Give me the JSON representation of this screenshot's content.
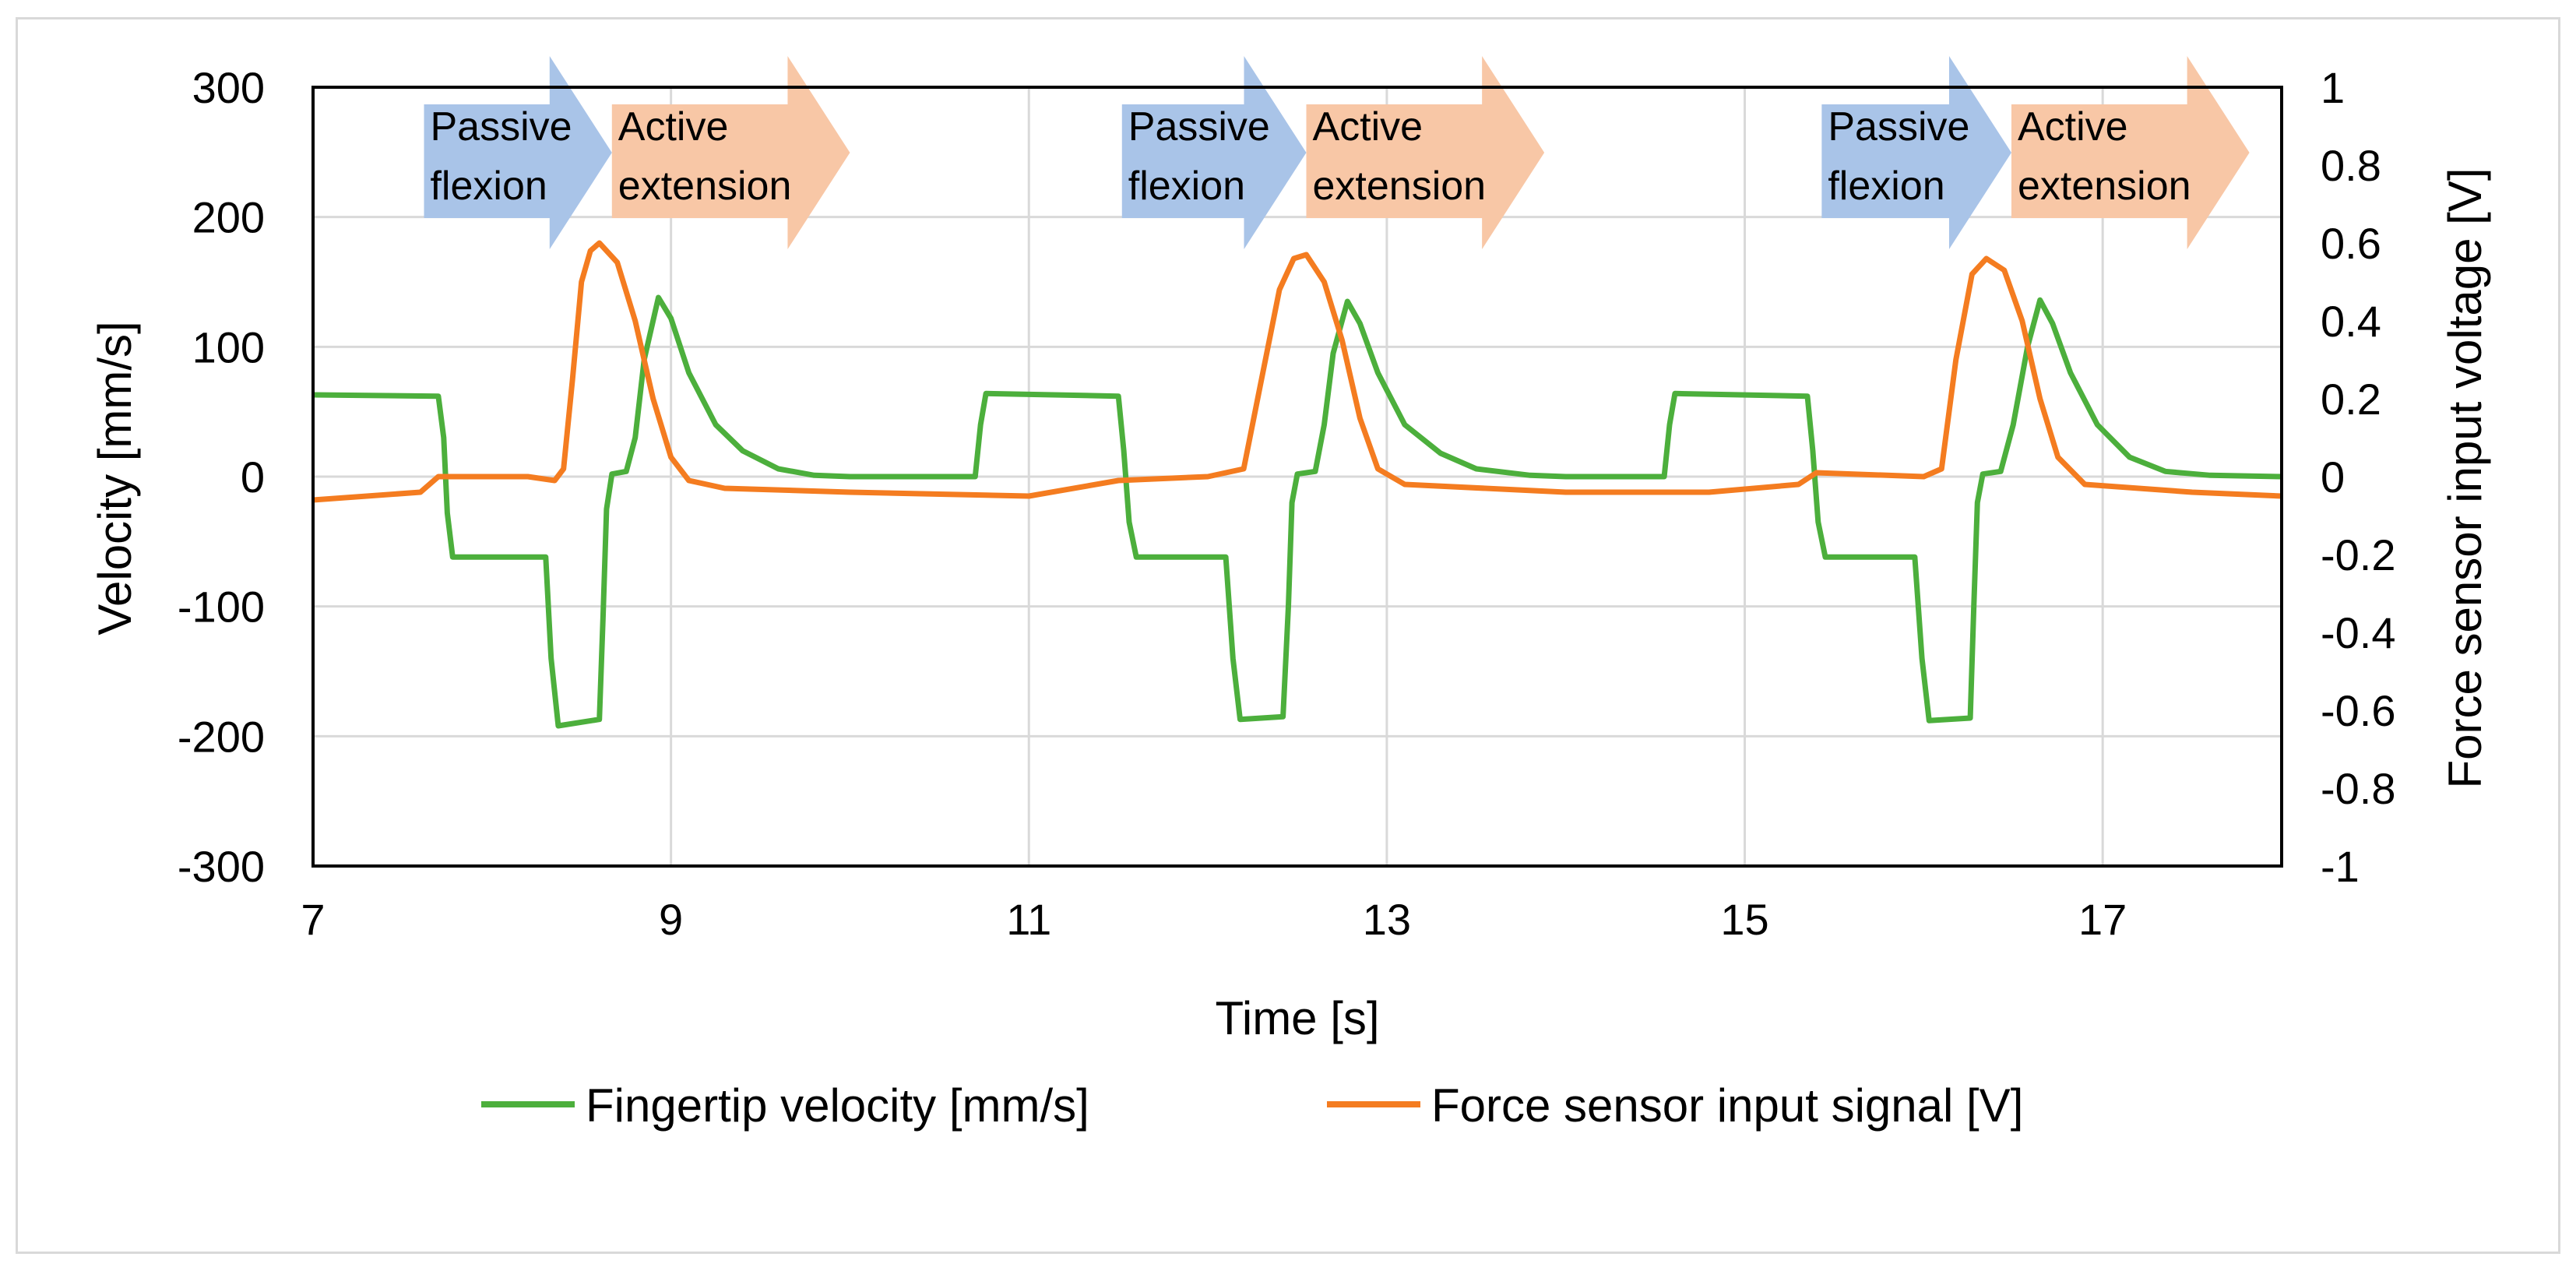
{
  "chart_data": {
    "type": "line",
    "title": "",
    "xlabel": "Time [s]",
    "ylabel": "Velocity [mm/s]",
    "y2label": "Force sensor input voltage [V]",
    "xlim": [
      7,
      18
    ],
    "ylim": [
      -300,
      300
    ],
    "y2lim": [
      -1,
      1
    ],
    "x_ticks": [
      7,
      9,
      11,
      13,
      15,
      17
    ],
    "y_ticks": [
      -300,
      -200,
      -100,
      0,
      100,
      200,
      300
    ],
    "y2_ticks": [
      -1,
      -0.8,
      -0.6,
      -0.4,
      -0.2,
      0,
      0.2,
      0.4,
      0.6,
      0.8,
      1
    ],
    "grid": true,
    "legend_position": "bottom",
    "series": [
      {
        "name": "Fingertip velocity [mm/s]",
        "axis": "left",
        "color": "#4caf3c",
        "points": [
          [
            7.0,
            63
          ],
          [
            7.7,
            62
          ],
          [
            7.73,
            30
          ],
          [
            7.75,
            -28
          ],
          [
            7.78,
            -62
          ],
          [
            8.3,
            -62
          ],
          [
            8.33,
            -140
          ],
          [
            8.37,
            -192
          ],
          [
            8.6,
            -187
          ],
          [
            8.62,
            -110
          ],
          [
            8.64,
            -25
          ],
          [
            8.67,
            2
          ],
          [
            8.75,
            4
          ],
          [
            8.8,
            30
          ],
          [
            8.85,
            90
          ],
          [
            8.93,
            138
          ],
          [
            9.0,
            122
          ],
          [
            9.1,
            80
          ],
          [
            9.25,
            40
          ],
          [
            9.4,
            20
          ],
          [
            9.6,
            6
          ],
          [
            9.8,
            1
          ],
          [
            10.0,
            0
          ],
          [
            10.5,
            0
          ],
          [
            10.7,
            0
          ],
          [
            10.73,
            40
          ],
          [
            10.76,
            64
          ],
          [
            11.5,
            62
          ],
          [
            11.53,
            20
          ],
          [
            11.56,
            -35
          ],
          [
            11.6,
            -62
          ],
          [
            12.1,
            -62
          ],
          [
            12.14,
            -140
          ],
          [
            12.18,
            -187
          ],
          [
            12.42,
            -185
          ],
          [
            12.45,
            -100
          ],
          [
            12.47,
            -20
          ],
          [
            12.5,
            2
          ],
          [
            12.6,
            4
          ],
          [
            12.65,
            40
          ],
          [
            12.7,
            95
          ],
          [
            12.78,
            135
          ],
          [
            12.85,
            118
          ],
          [
            12.95,
            80
          ],
          [
            13.1,
            40
          ],
          [
            13.3,
            18
          ],
          [
            13.5,
            6
          ],
          [
            13.8,
            1
          ],
          [
            14.0,
            0
          ],
          [
            14.5,
            0
          ],
          [
            14.55,
            0
          ],
          [
            14.58,
            40
          ],
          [
            14.61,
            64
          ],
          [
            15.35,
            62
          ],
          [
            15.38,
            20
          ],
          [
            15.41,
            -35
          ],
          [
            15.45,
            -62
          ],
          [
            15.95,
            -62
          ],
          [
            15.99,
            -140
          ],
          [
            16.03,
            -188
          ],
          [
            16.26,
            -186
          ],
          [
            16.28,
            -100
          ],
          [
            16.3,
            -20
          ],
          [
            16.33,
            2
          ],
          [
            16.43,
            4
          ],
          [
            16.5,
            40
          ],
          [
            16.58,
            100
          ],
          [
            16.65,
            136
          ],
          [
            16.72,
            118
          ],
          [
            16.82,
            80
          ],
          [
            16.97,
            40
          ],
          [
            17.15,
            15
          ],
          [
            17.35,
            4
          ],
          [
            17.6,
            1
          ],
          [
            18.0,
            0
          ]
        ]
      },
      {
        "name": "Force sensor input signal [V]",
        "axis": "right",
        "color": "#f47c20",
        "points": [
          [
            7.0,
            -0.06
          ],
          [
            7.6,
            -0.04
          ],
          [
            7.7,
            0.0
          ],
          [
            8.2,
            0.0
          ],
          [
            8.35,
            -0.01
          ],
          [
            8.4,
            0.02
          ],
          [
            8.45,
            0.25
          ],
          [
            8.5,
            0.5
          ],
          [
            8.55,
            0.58
          ],
          [
            8.6,
            0.6
          ],
          [
            8.7,
            0.55
          ],
          [
            8.8,
            0.4
          ],
          [
            8.9,
            0.2
          ],
          [
            9.0,
            0.05
          ],
          [
            9.1,
            -0.01
          ],
          [
            9.3,
            -0.03
          ],
          [
            10.0,
            -0.04
          ],
          [
            11.0,
            -0.05
          ],
          [
            11.5,
            -0.01
          ],
          [
            12.0,
            0.0
          ],
          [
            12.2,
            0.02
          ],
          [
            12.3,
            0.25
          ],
          [
            12.4,
            0.48
          ],
          [
            12.48,
            0.56
          ],
          [
            12.55,
            0.57
          ],
          [
            12.65,
            0.5
          ],
          [
            12.75,
            0.35
          ],
          [
            12.85,
            0.15
          ],
          [
            12.95,
            0.02
          ],
          [
            13.1,
            -0.02
          ],
          [
            14.0,
            -0.04
          ],
          [
            14.8,
            -0.04
          ],
          [
            15.3,
            -0.02
          ],
          [
            15.4,
            0.01
          ],
          [
            16.0,
            0.0
          ],
          [
            16.1,
            0.02
          ],
          [
            16.18,
            0.3
          ],
          [
            16.27,
            0.52
          ],
          [
            16.35,
            0.56
          ],
          [
            16.45,
            0.53
          ],
          [
            16.55,
            0.4
          ],
          [
            16.65,
            0.2
          ],
          [
            16.75,
            0.05
          ],
          [
            16.9,
            -0.02
          ],
          [
            17.5,
            -0.04
          ],
          [
            18.0,
            -0.05
          ]
        ]
      }
    ],
    "annotations": [
      {
        "label_line1": "Passive",
        "label_line2": "flexion",
        "color": "#a9c4e8",
        "x_start": 7.62,
        "x_end": 8.67
      },
      {
        "label_line1": "Active",
        "label_line2": "extension",
        "color": "#f8c7a6",
        "x_start": 8.67,
        "x_end": 10.0
      },
      {
        "label_line1": "Passive",
        "label_line2": "flexion",
        "color": "#a9c4e8",
        "x_start": 11.52,
        "x_end": 12.55
      },
      {
        "label_line1": "Active",
        "label_line2": "extension",
        "color": "#f8c7a6",
        "x_start": 12.55,
        "x_end": 13.88
      },
      {
        "label_line1": "Passive",
        "label_line2": "flexion",
        "color": "#a9c4e8",
        "x_start": 15.43,
        "x_end": 16.49
      },
      {
        "label_line1": "Active",
        "label_line2": "extension",
        "color": "#f8c7a6",
        "x_start": 16.49,
        "x_end": 17.82
      }
    ]
  }
}
